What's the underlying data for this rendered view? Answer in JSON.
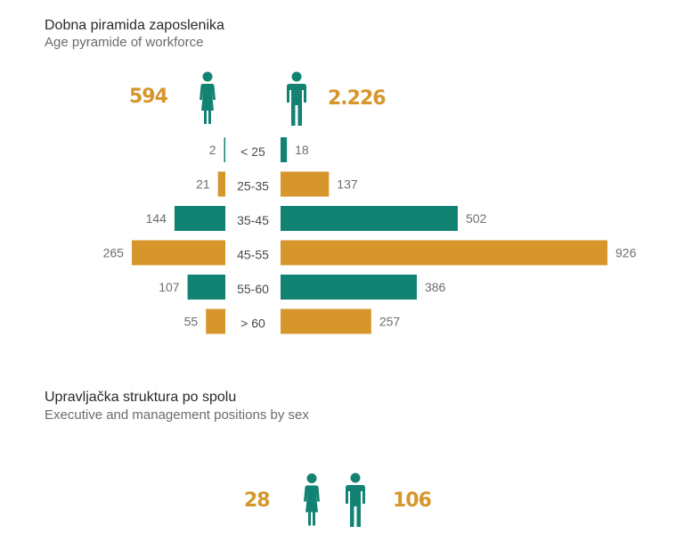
{
  "colors": {
    "teal": "#128373",
    "orange": "#d6962c",
    "label_gray": "#6e6e6e",
    "category_gray": "#4a4a4a"
  },
  "age_pyramid": {
    "title": "Dobna piramida zaposlenika",
    "subtitle": "Age pyramide of workforce",
    "female_total": "594",
    "male_total": "2.226"
  },
  "management": {
    "title": "Upravljačka struktura po spolu",
    "subtitle": "Executive and management positions by sex",
    "female_total": "28",
    "male_total": "106"
  },
  "chart_data": {
    "type": "bar",
    "orientation": "population-pyramid",
    "title": "Dobna piramida zaposlenika",
    "subtitle": "Age pyramide of workforce",
    "categories": [
      "< 25",
      "25-35",
      "35-45",
      "45-55",
      "55-60",
      "> 60"
    ],
    "series": [
      {
        "name": "female",
        "values": [
          2,
          21,
          144,
          265,
          107,
          55
        ]
      },
      {
        "name": "male",
        "values": [
          18,
          137,
          502,
          926,
          386,
          257
        ]
      }
    ],
    "bar_colors": [
      "#128373",
      "#d6962c",
      "#128373",
      "#d6962c",
      "#128373",
      "#d6962c"
    ],
    "xlim": [
      0,
      926
    ]
  }
}
